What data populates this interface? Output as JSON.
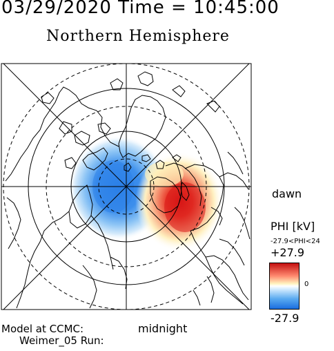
{
  "header": {
    "timestamp": "03/29/2020 Time = 10:45:00",
    "hemisphere": "Northern Hemisphere"
  },
  "map": {
    "labels": {
      "dawn": "dawn",
      "midnight": "midnight"
    },
    "potential_cells": [
      {
        "sign": "negative",
        "side": "dusk",
        "color": "#1a6ee0"
      },
      {
        "sign": "positive",
        "side": "dawn",
        "color": "#d81818"
      }
    ],
    "colors": {
      "grid": "#000000",
      "frame": "#000000",
      "coastline": "#000000"
    }
  },
  "colorbar": {
    "title": "PHI [kV]",
    "range_text": "-27.9<PHI<24",
    "max_label": "+27.9",
    "zero_label": "0",
    "min_label": "-27.9",
    "colors": {
      "positive": "#c41010",
      "zero": "#ffffff",
      "negative": "#1a6ee0"
    }
  },
  "footer": {
    "model_line1": "Model at CCMC:",
    "model_line2": "Weimer_05 Run:"
  }
}
